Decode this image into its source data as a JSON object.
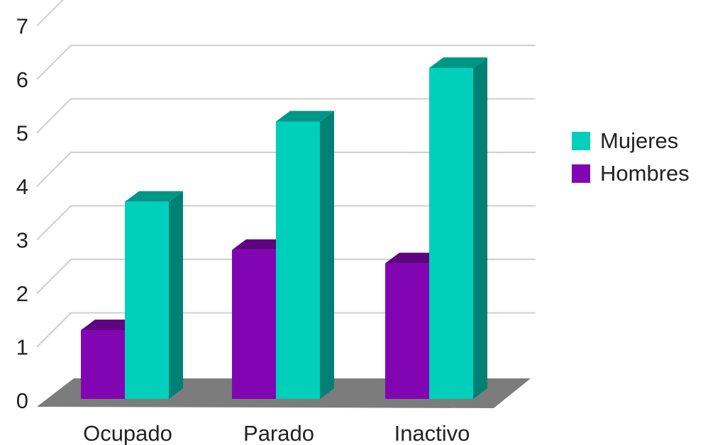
{
  "chart_data": {
    "type": "bar",
    "title": "",
    "xlabel": "",
    "ylabel": "",
    "categories": [
      "Ocupado",
      "Parado",
      "Inactivo"
    ],
    "series": [
      {
        "name": "Hombres",
        "values": [
          1.1,
          2.6,
          2.35
        ],
        "color": "#8205b4"
      },
      {
        "name": "Mujeres",
        "values": [
          3.5,
          5.0,
          6.0
        ],
        "color": "#00d0bb"
      }
    ],
    "ylim": [
      0,
      7
    ],
    "yticks": [
      "0",
      "1",
      "2",
      "3",
      "4",
      "5",
      "6",
      "7"
    ],
    "grid": true,
    "legend_position": "right",
    "style": "3d-column"
  }
}
